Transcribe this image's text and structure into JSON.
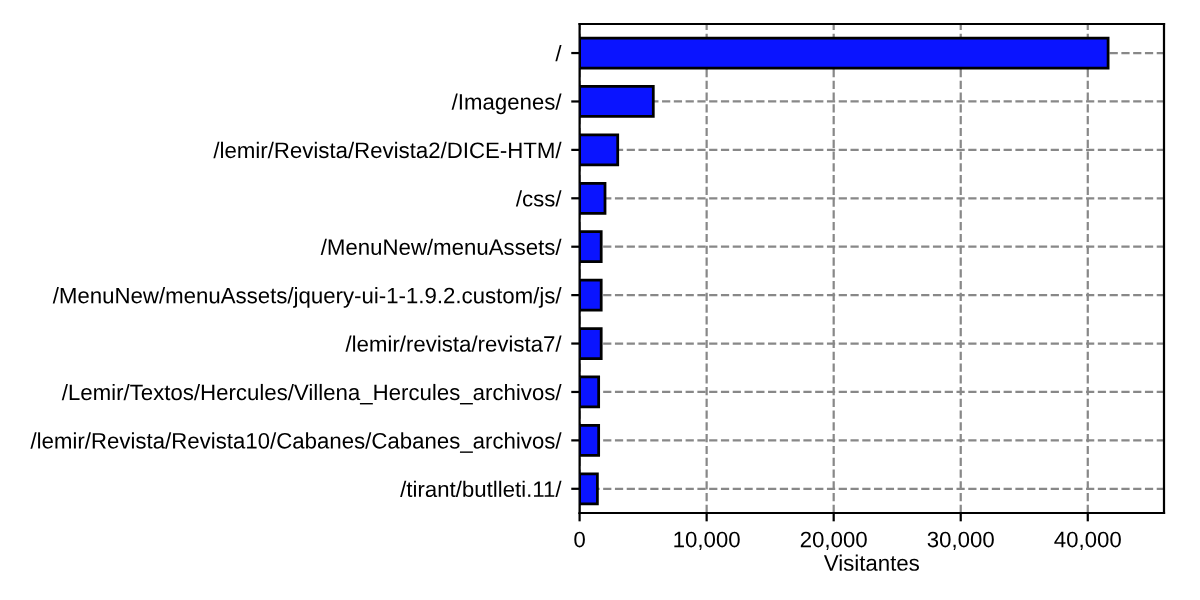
{
  "chart_data": {
    "type": "bar",
    "orientation": "horizontal",
    "xlabel": "Visitantes",
    "categories": [
      "/",
      "/Imagenes/",
      "/lemir/Revista/Revista2/DICE-HTM/",
      "/css/",
      "/MenuNew/menuAssets/",
      "/MenuNew/menuAssets/jquery-ui-1-1.9.2.custom/js/",
      "/lemir/revista/revista7/",
      "/Lemir/Textos/Hercules/Villena_Hercules_archivos/",
      "/lemir/Revista/Revista10/Cabanes/Cabanes_archivos/",
      "/tirant/butlleti.11/"
    ],
    "values": [
      41600,
      5800,
      3000,
      2000,
      1700,
      1700,
      1700,
      1500,
      1500,
      1400
    ],
    "color": "#0a14ff",
    "xlim": [
      0,
      46000
    ],
    "xticks": [
      0,
      {
        "value": 10000,
        "label": "10,000"
      },
      {
        "value": 20000,
        "label": "20,000"
      },
      {
        "value": 30000,
        "label": "30,000"
      },
      {
        "value": 40000,
        "label": "40,000"
      }
    ],
    "grid": true
  }
}
